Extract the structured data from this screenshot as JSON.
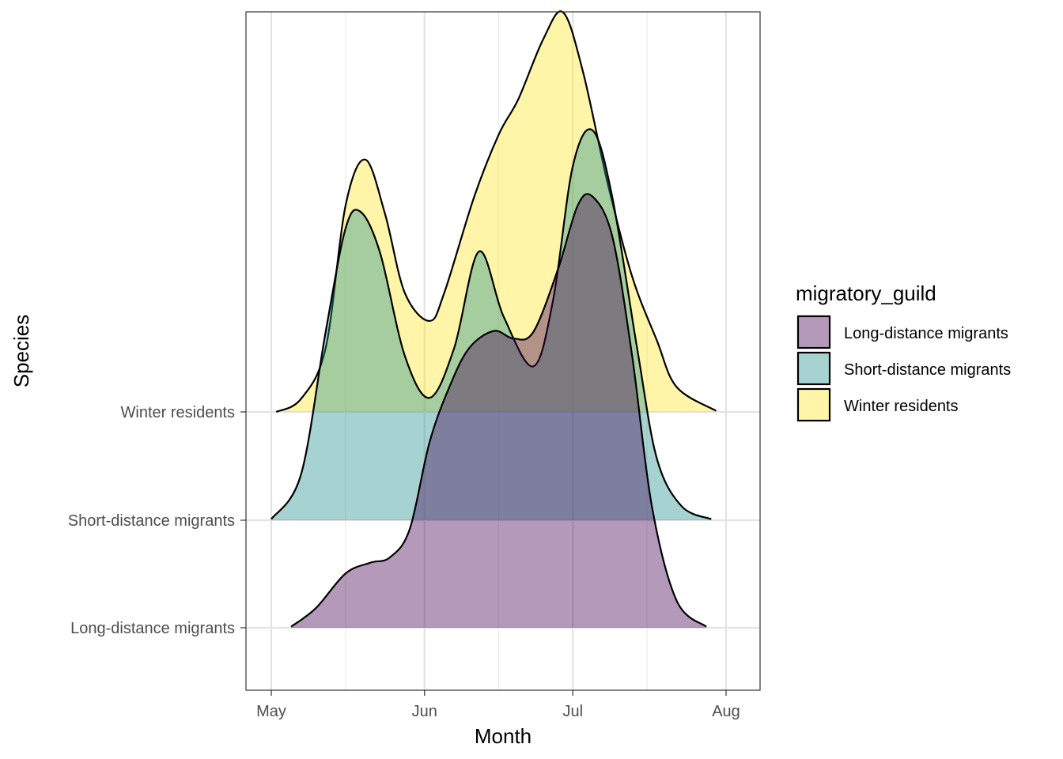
{
  "chart_data": {
    "type": "ridgeline",
    "xlabel": "Month",
    "ylabel": "Species",
    "x_ticks": [
      "May",
      "Jun",
      "Jul",
      "Aug"
    ],
    "y_categories": [
      "Long-distance migrants",
      "Short-distance migrants",
      "Winter residents"
    ],
    "legend": {
      "title": "migratory_guild",
      "position": "right",
      "entries": [
        "Long-distance migrants",
        "Short-distance migrants",
        "Winter residents"
      ]
    },
    "grid": true,
    "colors": {
      "Long-distance migrants": "#440154",
      "Short-distance migrants": "#21908C",
      "Winter residents": "#FDE725"
    },
    "fill_alpha": 0.4,
    "series": [
      {
        "name": "Winter residents",
        "points": [
          [
            "May 2",
            0
          ],
          [
            "May 7",
            0.12
          ],
          [
            "May 12",
            0.59
          ],
          [
            "May 16",
            1.9
          ],
          [
            "May 20",
            2.33
          ],
          [
            "May 24",
            1.83
          ],
          [
            "May 28",
            1.1
          ],
          [
            "Jun 2",
            0.84
          ],
          [
            "Jun 5",
            1.1
          ],
          [
            "Jun 11",
            1.98
          ],
          [
            "Jun 16",
            2.56
          ],
          [
            "Jun 20",
            2.89
          ],
          [
            "Jun 25",
            3.44
          ],
          [
            "Jun 29",
            3.69
          ],
          [
            "Jul 3",
            3.15
          ],
          [
            "Jul 8",
            2.12
          ],
          [
            "Jul 13",
            1.25
          ],
          [
            "Jul 18",
            0.66
          ],
          [
            "Jul 22",
            0.23
          ],
          [
            "Jul 30",
            0.01
          ]
        ]
      },
      {
        "name": "Short-distance migrants",
        "points": [
          [
            "May 1",
            0.01
          ],
          [
            "May 7",
            0.42
          ],
          [
            "May 12",
            1.74
          ],
          [
            "May 16",
            2.69
          ],
          [
            "May 19",
            2.85
          ],
          [
            "May 23",
            2.47
          ],
          [
            "May 28",
            1.52
          ],
          [
            "Jun 2",
            1.13
          ],
          [
            "Jun 7",
            1.59
          ],
          [
            "Jun 12",
            2.48
          ],
          [
            "Jun 17",
            1.88
          ],
          [
            "Jun 23",
            1.42
          ],
          [
            "Jun 27",
            2.03
          ],
          [
            "Jul 1",
            3.27
          ],
          [
            "Jul 5",
            3.6
          ],
          [
            "Jul 9",
            2.98
          ],
          [
            "Jul 14",
            1.59
          ],
          [
            "Jul 18",
            0.57
          ],
          [
            "Jul 23",
            0.13
          ],
          [
            "Jul 29",
            0.01
          ]
        ]
      },
      {
        "name": "Long-distance migrants",
        "points": [
          [
            "May 5",
            0.01
          ],
          [
            "May 10",
            0.18
          ],
          [
            "May 16",
            0.5
          ],
          [
            "May 21",
            0.6
          ],
          [
            "May 25",
            0.65
          ],
          [
            "May 29",
            0.91
          ],
          [
            "Jun 2",
            1.71
          ],
          [
            "Jun 6",
            2.22
          ],
          [
            "Jun 10",
            2.58
          ],
          [
            "Jun 15",
            2.74
          ],
          [
            "Jun 19",
            2.67
          ],
          [
            "Jun 23",
            2.73
          ],
          [
            "Jun 28",
            3.31
          ],
          [
            "Jul 2",
            3.9
          ],
          [
            "Jul 5",
            3.98
          ],
          [
            "Jul 9",
            3.61
          ],
          [
            "Jul 13",
            2.51
          ],
          [
            "Jul 17",
            1.12
          ],
          [
            "Jul 22",
            0.25
          ],
          [
            "Jul 28",
            0.01
          ]
        ]
      }
    ]
  }
}
